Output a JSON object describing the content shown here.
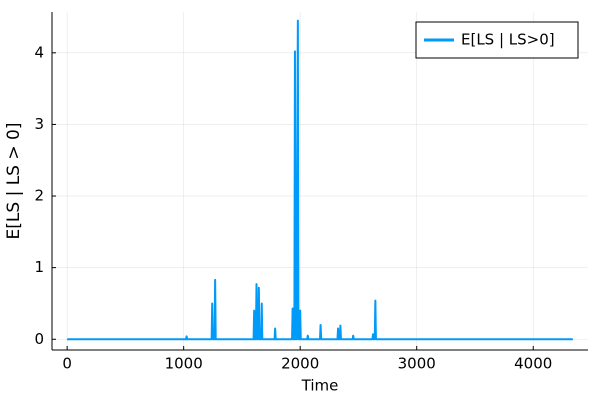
{
  "chart_data": {
    "type": "line",
    "x_label": "Time",
    "y_label": "E[LS | LS > 0]",
    "x": [
      0,
      1020,
      1025,
      1030,
      1240,
      1245,
      1250,
      1265,
      1270,
      1275,
      1600,
      1605,
      1610,
      1620,
      1625,
      1630,
      1640,
      1645,
      1650,
      1665,
      1670,
      1675,
      1780,
      1785,
      1790,
      1930,
      1935,
      1940,
      1950,
      1955,
      1960,
      1970,
      1975,
      1980,
      1985,
      1995,
      2000,
      2005,
      2060,
      2065,
      2070,
      2170,
      2175,
      2180,
      2320,
      2325,
      2330,
      2340,
      2345,
      2350,
      2450,
      2455,
      2460,
      2620,
      2625,
      2630,
      2640,
      2645,
      2650,
      4340
    ],
    "series": [
      {
        "name": "E[LS | LS>0]",
        "color": "#009af9",
        "values": [
          0,
          0,
          0.04,
          0,
          0,
          0.5,
          0,
          0,
          0.83,
          0,
          0,
          0.4,
          0,
          0,
          0.77,
          0,
          0,
          0.72,
          0,
          0,
          0.5,
          0,
          0,
          0.15,
          0,
          0,
          0.43,
          0,
          0,
          4.02,
          0,
          0,
          2.6,
          4.45,
          0,
          0,
          0.4,
          0,
          0,
          0.05,
          0,
          0,
          0.2,
          0,
          0,
          0.15,
          0,
          0,
          0.19,
          0,
          0,
          0.05,
          0,
          0,
          0.07,
          0,
          0,
          0.54,
          0,
          0
        ]
      }
    ],
    "xlim": [
      -130,
      4470
    ],
    "ylim": [
      -0.15,
      4.57
    ],
    "xticks": [
      0,
      1000,
      2000,
      3000,
      4000
    ],
    "yticks": [
      0,
      1,
      2,
      3,
      4
    ],
    "grid": true,
    "legend": "top-right"
  }
}
